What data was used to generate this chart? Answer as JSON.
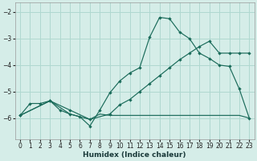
{
  "xlabel": "Humidex (Indice chaleur)",
  "xlim": [
    -0.5,
    23.5
  ],
  "ylim": [
    -6.8,
    -1.65
  ],
  "yticks": [
    -6,
    -5,
    -4,
    -3,
    -2
  ],
  "xticks": [
    0,
    1,
    2,
    3,
    4,
    5,
    6,
    7,
    8,
    9,
    10,
    11,
    12,
    13,
    14,
    15,
    16,
    17,
    18,
    19,
    20,
    21,
    22,
    23
  ],
  "bg_color": "#d5ede8",
  "grid_color": "#afd8d0",
  "line_color": "#1a6b5a",
  "curve1_x": [
    0,
    1,
    2,
    3,
    4,
    5,
    6,
    7,
    8,
    9,
    10,
    11,
    12,
    13,
    14,
    15,
    16,
    17,
    18,
    19,
    20,
    21,
    22,
    23
  ],
  "curve1_y": [
    -5.9,
    -5.45,
    -5.45,
    -5.35,
    -5.7,
    -5.85,
    -5.95,
    -6.3,
    -5.7,
    -5.05,
    -4.6,
    -4.3,
    -4.1,
    -2.95,
    -2.2,
    -2.25,
    -2.75,
    -3.0,
    -3.55,
    -3.75,
    -4.0,
    -4.05,
    -4.9,
    -6.0
  ],
  "curve2_x": [
    0,
    3,
    5,
    7,
    9,
    10,
    11,
    12,
    13,
    14,
    15,
    16,
    17,
    18,
    19,
    20,
    21,
    22,
    23
  ],
  "curve2_y": [
    -5.9,
    -5.35,
    -5.7,
    -6.05,
    -5.85,
    -5.5,
    -5.3,
    -5.0,
    -4.7,
    -4.4,
    -4.1,
    -3.8,
    -3.55,
    -3.3,
    -3.1,
    -3.55,
    -3.55,
    -3.55,
    -3.55
  ],
  "curve3_x": [
    0,
    3,
    5,
    6,
    7,
    8,
    9,
    10,
    11,
    12,
    13,
    14,
    15,
    16,
    17,
    18,
    19,
    20,
    21,
    22,
    23
  ],
  "curve3_y": [
    -5.9,
    -5.35,
    -5.85,
    -5.95,
    -6.05,
    -5.85,
    -5.9,
    -5.9,
    -5.9,
    -5.9,
    -5.9,
    -5.9,
    -5.9,
    -5.9,
    -5.9,
    -5.9,
    -5.9,
    -5.9,
    -5.9,
    -5.9,
    -6.0
  ]
}
